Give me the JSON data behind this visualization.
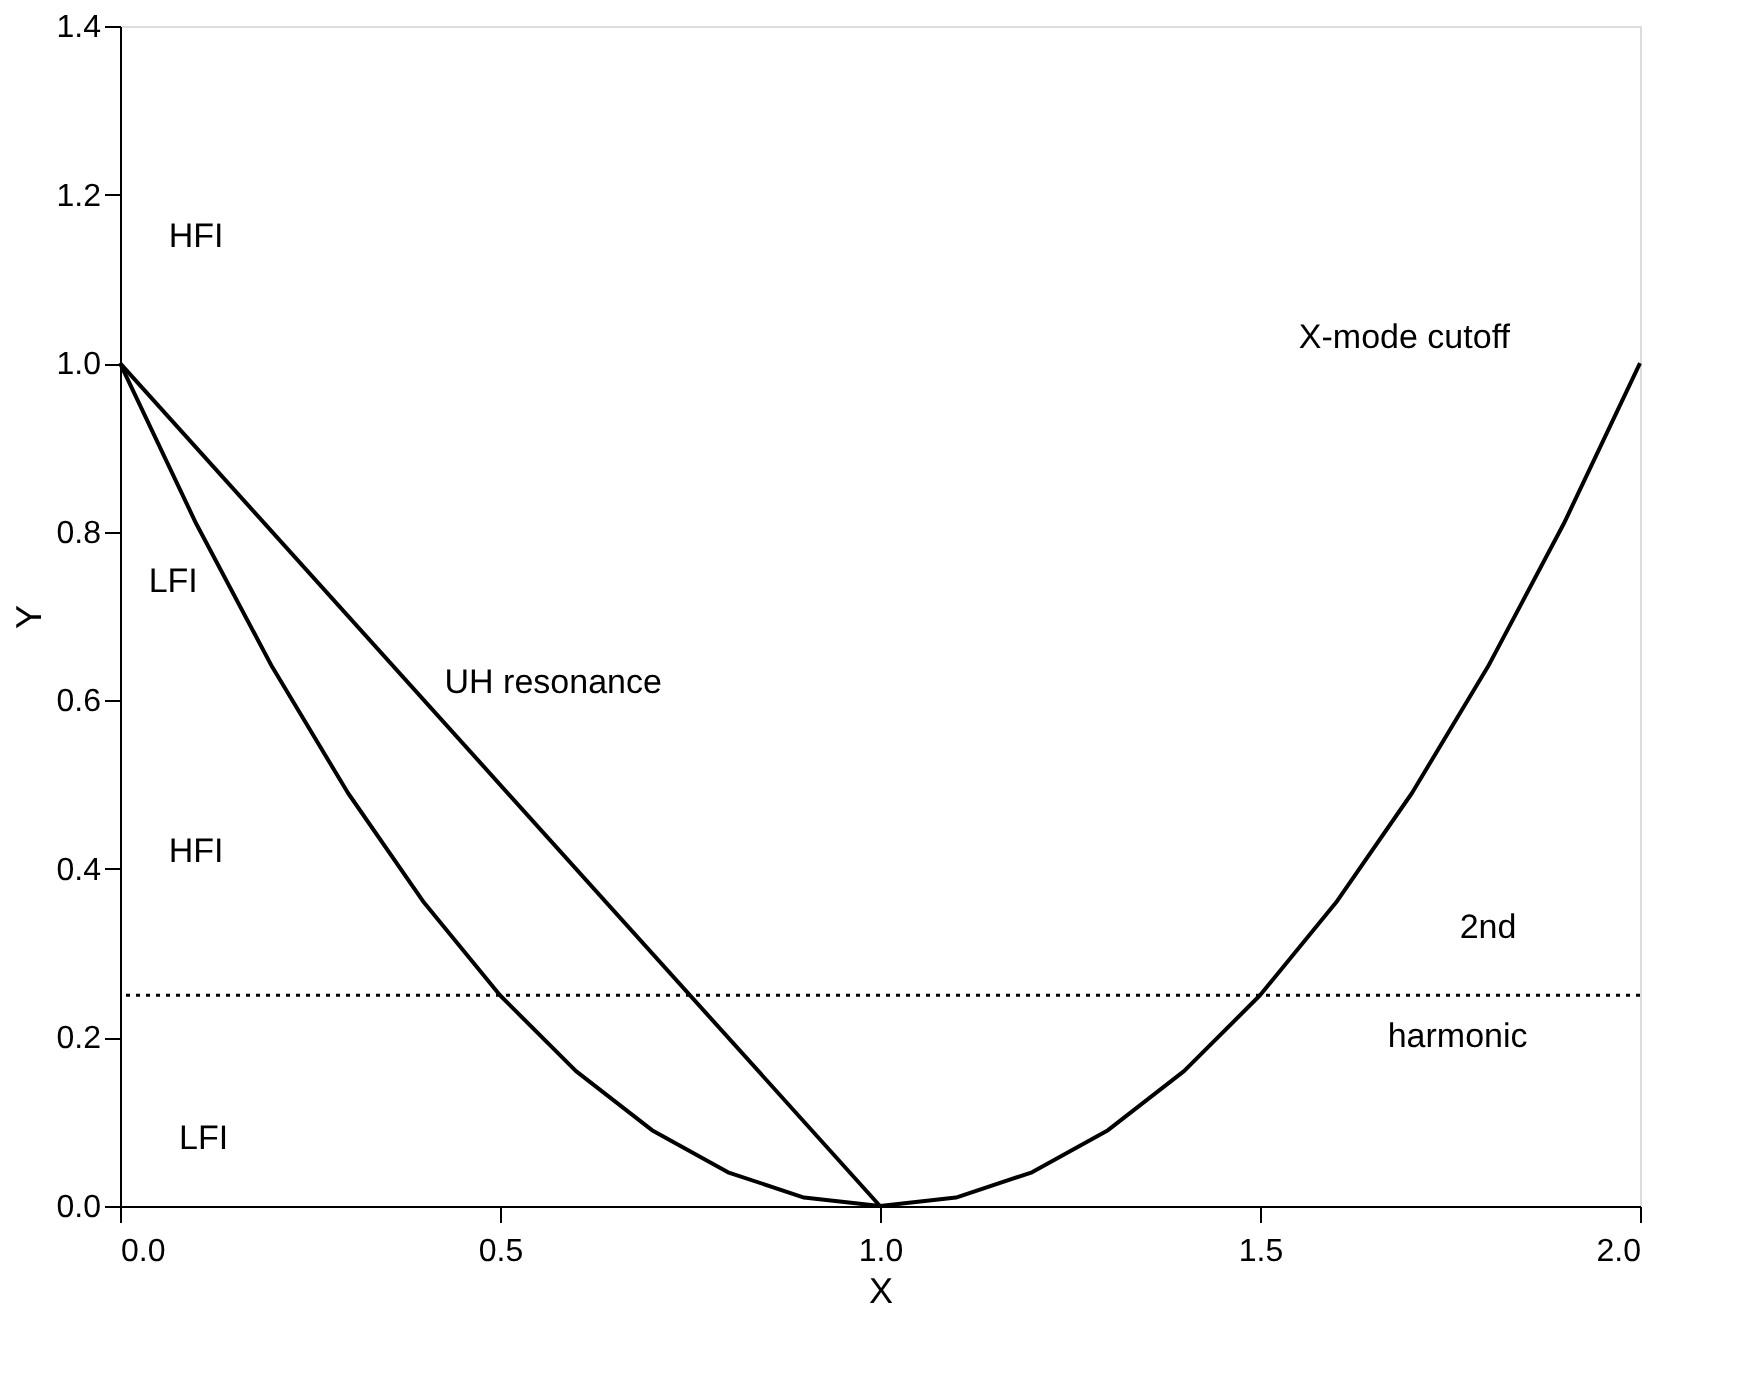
{
  "chart_data": {
    "type": "line",
    "xlabel": "X",
    "ylabel": "Y",
    "xlim": [
      0,
      2
    ],
    "ylim": [
      0,
      1.4
    ],
    "xticks": [
      {
        "value": 0,
        "label": "0.0"
      },
      {
        "value": 0.5,
        "label": "0.5"
      },
      {
        "value": 1,
        "label": "1.0"
      },
      {
        "value": 1.5,
        "label": "1.5"
      },
      {
        "value": 2,
        "label": "2.0"
      }
    ],
    "yticks": [
      {
        "value": 0,
        "label": "0.0"
      },
      {
        "value": 0.2,
        "label": "0.2"
      },
      {
        "value": 0.4,
        "label": "0.4"
      },
      {
        "value": 0.6,
        "label": "0.6"
      },
      {
        "value": 0.8,
        "label": "0.8"
      },
      {
        "value": 1.0,
        "label": "1.0"
      },
      {
        "value": 1.2,
        "label": "1.2"
      },
      {
        "value": 1.4,
        "label": "1.4"
      }
    ],
    "grid": false,
    "legend": false,
    "marker": "none",
    "line_style": "solid",
    "series": [
      {
        "color": "#000000",
        "x": [
          0,
          1
        ],
        "values": [
          1,
          0
        ]
      },
      {
        "color": "#000000",
        "x": [
          0,
          0.1,
          0.2,
          0.3,
          0.4,
          0.5,
          0.6,
          0.7,
          0.8,
          0.9,
          1.0,
          1.1,
          1.2,
          1.3,
          1.4,
          1.5,
          1.6,
          1.7,
          1.8,
          1.9,
          2.0
        ],
        "values": [
          1,
          0.81,
          0.64,
          0.49,
          0.36,
          0.25,
          0.16,
          0.09,
          0.04,
          0.01,
          0,
          0.01,
          0.04,
          0.09,
          0.16,
          0.25,
          0.36,
          0.49,
          0.64,
          0.81,
          1.0
        ]
      }
    ],
    "ref_lines": [
      {
        "axis": "y",
        "value": 0.25,
        "color": "#000000",
        "line_style": "dotted"
      }
    ],
    "annotations": [
      "HFI",
      "LFI",
      "HFI",
      "LFI",
      "UH resonance",
      "X-mode cutoff",
      "2nd",
      "harmonic"
    ]
  }
}
